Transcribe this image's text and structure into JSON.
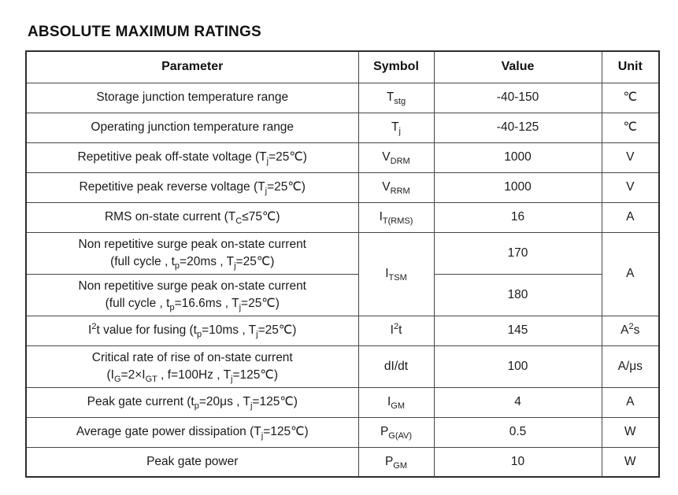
{
  "title": "ABSOLUTE MAXIMUM RATINGS",
  "table": {
    "headers": {
      "parameter": "Parameter",
      "symbol": "Symbol",
      "value": "Value",
      "unit": "Unit"
    },
    "rows": [
      {
        "parameter": "Storage junction temperature range",
        "symbol": "T~stg~",
        "value": "-40-150",
        "unit": "℃"
      },
      {
        "parameter": "Operating junction temperature range",
        "symbol": "T~j~",
        "value": "-40-125",
        "unit": "℃"
      },
      {
        "parameter": "Repetitive peak off-state voltage (T~j~=25℃)",
        "symbol": "V~DRM~",
        "value": "1000",
        "unit": "V"
      },
      {
        "parameter": "Repetitive peak reverse voltage (T~j~=25℃)",
        "symbol": "V~RRM~",
        "value": "1000",
        "unit": "V"
      },
      {
        "parameter": "RMS on-state current (T~C~≤75℃)",
        "symbol": "I~T(RMS)~",
        "value": "16",
        "unit": "A"
      },
      {
        "parameter": "Non repetitive surge peak on-state current\n(full cycle , t~p~=20ms , T~j~=25℃)",
        "symbol": "I~TSM~",
        "value": "170",
        "unit": "A"
      },
      {
        "parameter": "Non repetitive surge peak on-state current\n(full cycle , t~p~=16.6ms , T~j~=25℃)",
        "value": "180"
      },
      {
        "parameter": "I^2^t value for fusing (t~p~=10ms , T~j~=25℃)",
        "symbol": "I^2^t",
        "value": "145",
        "unit": "A^2^s"
      },
      {
        "parameter": "Critical rate of rise of on-state current\n(I~G~=2×I~GT~ , f=100Hz , T~j~=125℃)",
        "symbol": "dI/dt",
        "value": "100",
        "unit": "A/μs"
      },
      {
        "parameter": "Peak gate current (t~p~=20μs , T~j~=125℃)",
        "symbol": "I~GM~",
        "value": "4",
        "unit": "A"
      },
      {
        "parameter": "Average gate power dissipation (T~j~=125℃)",
        "symbol": "P~G(AV)~",
        "value": "0.5",
        "unit": "W"
      },
      {
        "parameter": "Peak gate power",
        "symbol": "P~GM~",
        "value": "10",
        "unit": "W"
      }
    ]
  }
}
